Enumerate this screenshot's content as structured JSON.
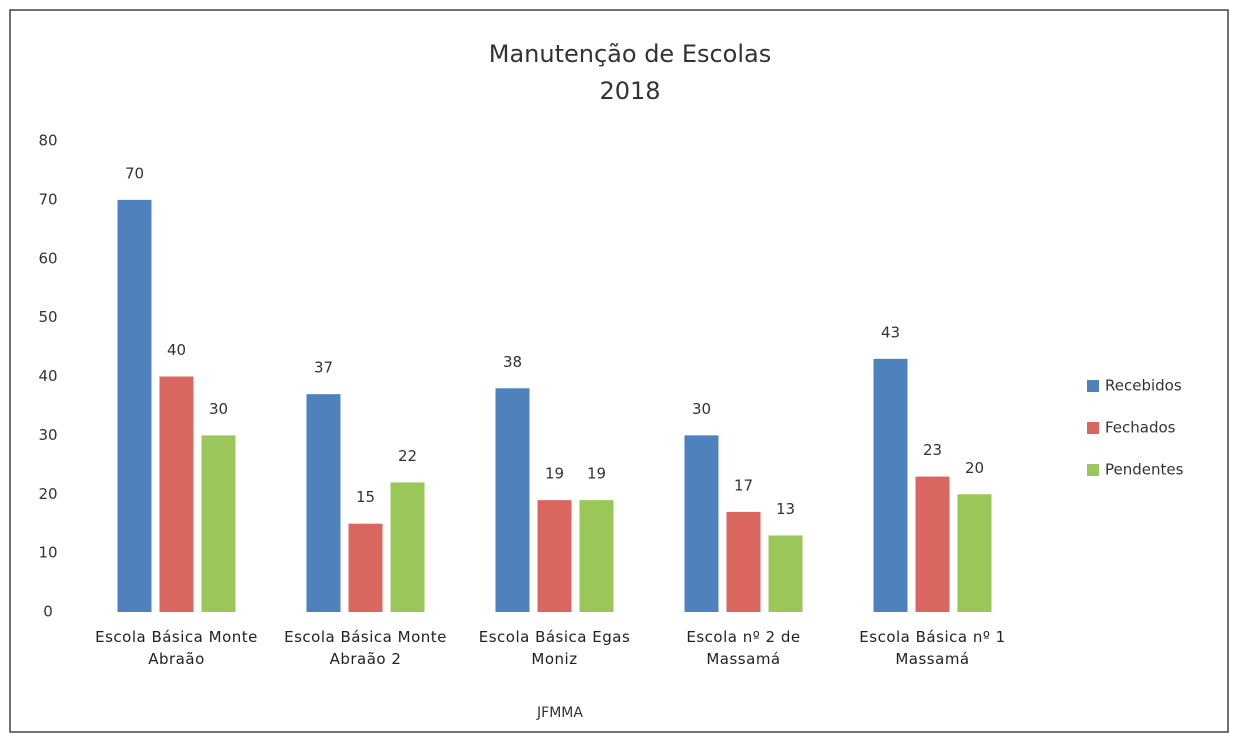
{
  "chart_data": {
    "type": "bar",
    "title": "Manutenção de Escolas",
    "subtitle": "2018",
    "x_label": "JFMMA",
    "categories": [
      "Escola Básica Monte Abraão",
      "Escola Básica Monte Abraão 2",
      "Escola Básica Egas Moniz",
      "Escola nº 2 de Massamá",
      "Escola Básica nº 1 Massamá"
    ],
    "series": [
      {
        "name": "Recebidos",
        "color": "#4f81bd",
        "values": [
          70,
          37,
          38,
          30,
          43
        ]
      },
      {
        "name": "Fechados",
        "color": "#d9665f",
        "values": [
          40,
          15,
          19,
          17,
          23
        ]
      },
      {
        "name": "Pendentes",
        "color": "#9bc65a",
        "values": [
          30,
          22,
          19,
          13,
          20
        ]
      }
    ],
    "ylim": [
      0,
      80
    ],
    "yticks": [
      0,
      10,
      20,
      30,
      40,
      50,
      60,
      70,
      80
    ],
    "grid": false,
    "legend": "right"
  }
}
